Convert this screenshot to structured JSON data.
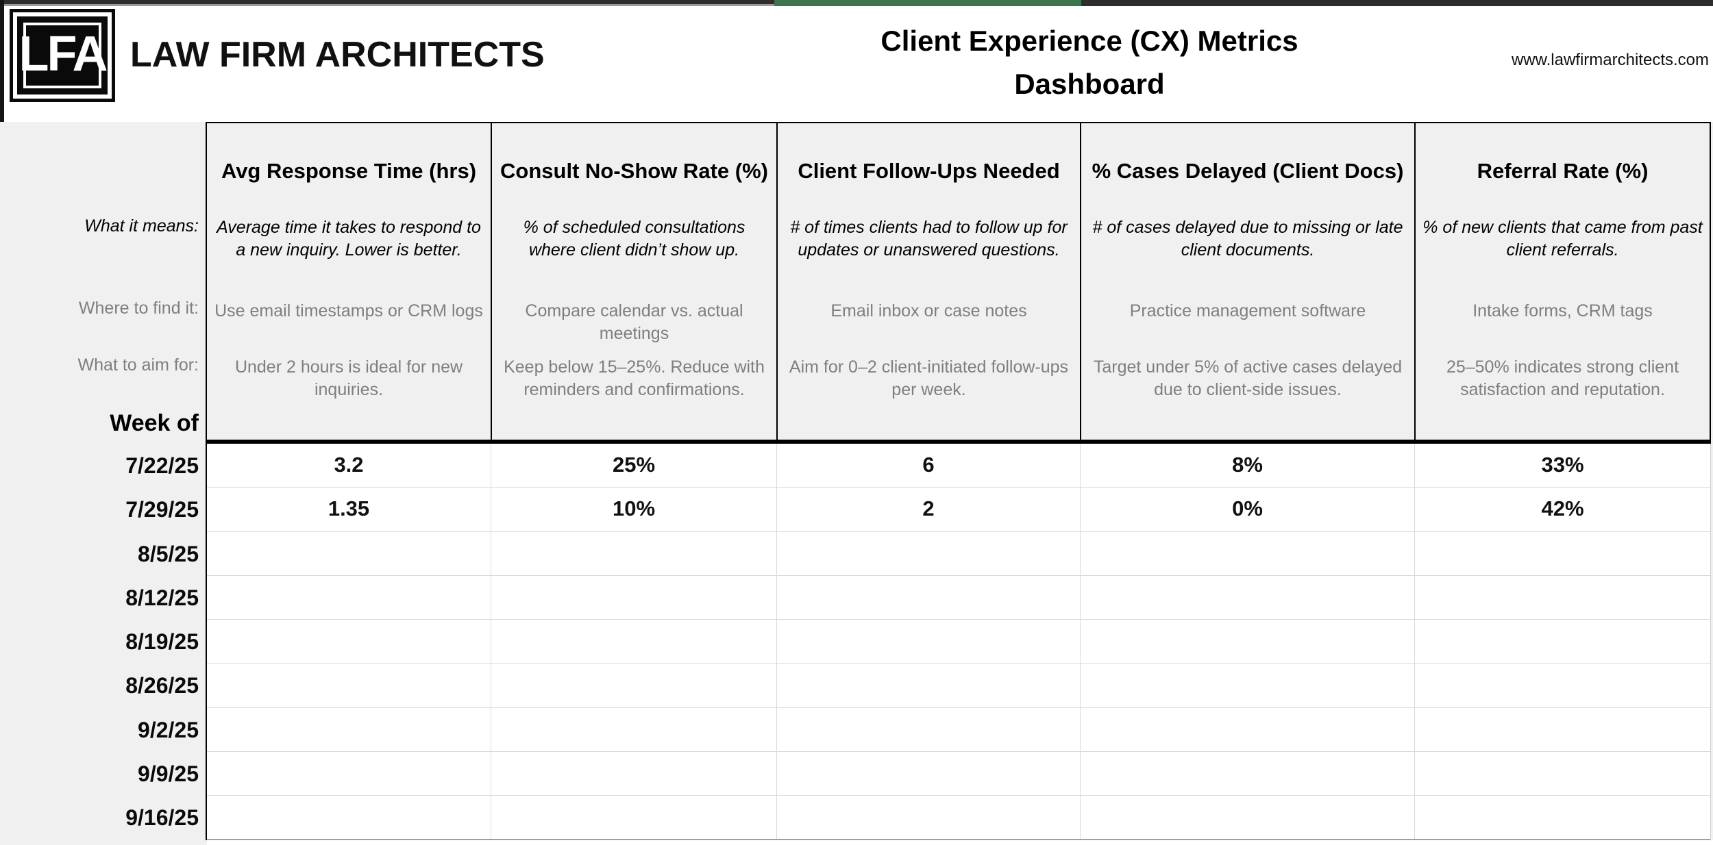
{
  "brand": {
    "logo_text": "LFA",
    "company": "LAW FIRM ARCHITECTS",
    "website": "www.lawfirmarchitects.com"
  },
  "title": {
    "line1": "Client Experience (CX) Metrics",
    "line2": "Dashboard"
  },
  "row_labels": {
    "meaning": "What it means:",
    "find": "Where to find it:",
    "aim": "What to aim for:",
    "week_of": "Week of"
  },
  "columns": [
    {
      "title": "Avg Response Time (hrs)",
      "meaning": "Average time it takes to respond to a new inquiry. Lower is better.",
      "find": "Use email timestamps or CRM logs",
      "aim": "Under 2 hours is ideal for new inquiries."
    },
    {
      "title": "Consult No-Show Rate (%)",
      "meaning": "% of scheduled consultations where client didn’t show up.",
      "find": "Compare calendar vs. actual meetings",
      "aim": "Keep below 15–25%. Reduce with reminders and confirmations."
    },
    {
      "title": "Client Follow-Ups Needed",
      "meaning": "# of times clients had to follow up for updates or unanswered questions.",
      "find": "Email inbox or case notes",
      "aim": "Aim for 0–2 client-initiated follow-ups per week."
    },
    {
      "title": "% Cases Delayed (Client Docs)",
      "meaning": "# of cases delayed due to missing or late client documents.",
      "find": "Practice management software",
      "aim": "Target under 5% of active cases delayed due to client-side issues."
    },
    {
      "title": "Referral Rate (%)",
      "meaning": "% of new clients that came from past client referrals.",
      "find": "Intake forms, CRM tags",
      "aim": "25–50% indicates strong client satisfaction and reputation."
    }
  ],
  "rows": [
    {
      "week": "7/22/25",
      "values": [
        "3.2",
        "25%",
        "6",
        "8%",
        "33%"
      ]
    },
    {
      "week": "7/29/25",
      "values": [
        "1.35",
        "10%",
        "2",
        "0%",
        "42%"
      ]
    },
    {
      "week": "8/5/25",
      "values": [
        "",
        "",
        "",
        "",
        ""
      ]
    },
    {
      "week": "8/12/25",
      "values": [
        "",
        "",
        "",
        "",
        ""
      ]
    },
    {
      "week": "8/19/25",
      "values": [
        "",
        "",
        "",
        "",
        ""
      ]
    },
    {
      "week": "8/26/25",
      "values": [
        "",
        "",
        "",
        "",
        ""
      ]
    },
    {
      "week": "9/2/25",
      "values": [
        "",
        "",
        "",
        "",
        ""
      ]
    },
    {
      "week": "9/9/25",
      "values": [
        "",
        "",
        "",
        "",
        ""
      ]
    },
    {
      "week": "9/16/25",
      "values": [
        "",
        "",
        "",
        "",
        ""
      ]
    }
  ],
  "colors": {
    "topbar_green": "#3e744d",
    "label_gray": "#7f7f7f"
  }
}
